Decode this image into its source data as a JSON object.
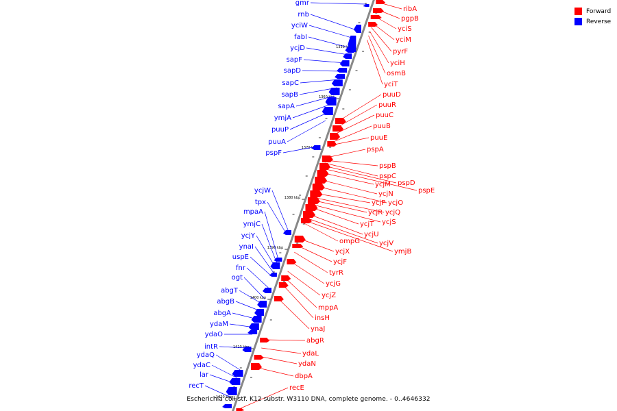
{
  "legend": {
    "forward": "Forward",
    "reverse": "Reverse"
  },
  "colors": {
    "forward": "#ff0000",
    "reverse": "#0000ff",
    "axis": "#888888",
    "leader_forward": "#ff0000",
    "leader_reverse": "#0000ff"
  },
  "caption": "Escherichia coli str. K12 substr. W3110 DNA, complete genome. - 0..4646332",
  "ticks": [
    "1350 kbp",
    "1360 kbp",
    "1370 kbp",
    "1380 kbp",
    "1390 kbp",
    "1400 kbp",
    "1410 kbp",
    "1420 kbp"
  ],
  "reverse_genes": [
    "gmr",
    "rnb",
    "yciW",
    "fabI",
    "ycjD",
    "sapF",
    "sapD",
    "sapC",
    "sapB",
    "sapA",
    "ymjA",
    "puuP",
    "puuA",
    "pspF",
    "ycjW",
    "tpx",
    "mpaA",
    "ymjC",
    "ycjY",
    "ynaI",
    "uspE",
    "fnr",
    "ogt",
    "abgT",
    "abgB",
    "abgA",
    "ydaM",
    "ydaO",
    "intR",
    "ydaQ",
    "ydaC",
    "lar",
    "recT"
  ],
  "forward_genes": [
    "ribA",
    "pgpB",
    "yciS",
    "yciM",
    "pyrF",
    "yciH",
    "osmB",
    "yciT",
    "puuD",
    "puuR",
    "puuC",
    "puuB",
    "puuE",
    "pspA",
    "pspB",
    "pspC",
    "pspD",
    "pspE",
    "ycjM",
    "ycjN",
    "ycjO",
    "ycjP",
    "ycjQ",
    "ycjR",
    "ycjS",
    "ycjT",
    "ycjU",
    "ycjV",
    "ompG",
    "ymjB",
    "ycjX",
    "ycjF",
    "tyrR",
    "ycjG",
    "ycjZ",
    "mppA",
    "insH",
    "ynaJ",
    "abgR",
    "ydaL",
    "ydaN",
    "dbpA",
    "recE"
  ]
}
